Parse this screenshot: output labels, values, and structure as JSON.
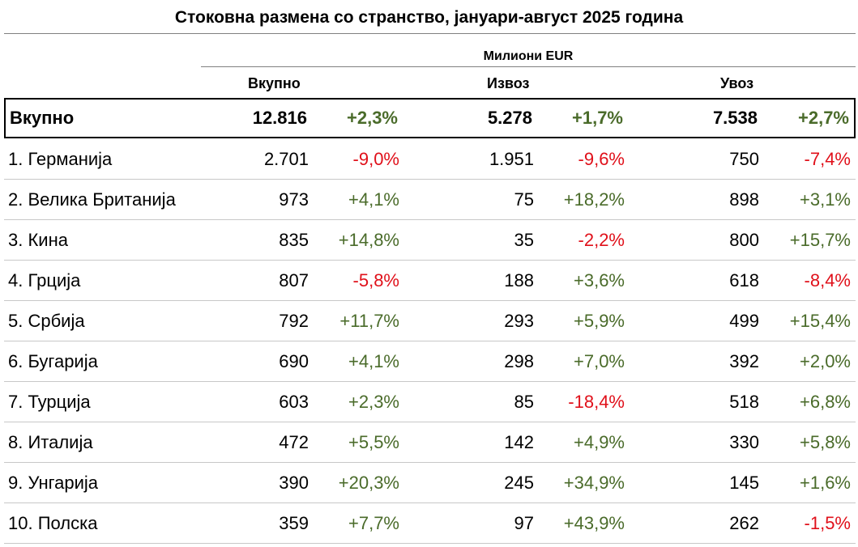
{
  "title": "Стоковна размена со странство, јануари-август 2025 година",
  "units": "Милиони EUR",
  "columns": {
    "total": "Вкупно",
    "exports": "Извоз",
    "imports": "Увоз"
  },
  "colors": {
    "positive": "#4a6b2a",
    "negative": "#e0101a"
  },
  "total_row": {
    "label": "Вкупно",
    "total": "12.816",
    "total_change": "+2,3%",
    "exports": "5.278",
    "exports_change": "+1,7%",
    "imports": "7.538",
    "imports_change": "+2,7%"
  },
  "rows": [
    {
      "label": "1. Германија",
      "total": "2.701",
      "total_change": "-9,0%",
      "exports": "1.951",
      "exports_change": "-9,6%",
      "imports": "750",
      "imports_change": "-7,4%"
    },
    {
      "label": "2. Велика Британија",
      "total": "973",
      "total_change": "+4,1%",
      "exports": "75",
      "exports_change": "+18,2%",
      "imports": "898",
      "imports_change": "+3,1%"
    },
    {
      "label": "3. Кина",
      "total": "835",
      "total_change": "+14,8%",
      "exports": "35",
      "exports_change": "-2,2%",
      "imports": "800",
      "imports_change": "+15,7%"
    },
    {
      "label": "4. Грција",
      "total": "807",
      "total_change": "-5,8%",
      "exports": "188",
      "exports_change": "+3,6%",
      "imports": "618",
      "imports_change": "-8,4%"
    },
    {
      "label": "5. Србија",
      "total": "792",
      "total_change": "+11,7%",
      "exports": "293",
      "exports_change": "+5,9%",
      "imports": "499",
      "imports_change": "+15,4%"
    },
    {
      "label": "6. Бугарија",
      "total": "690",
      "total_change": "+4,1%",
      "exports": "298",
      "exports_change": "+7,0%",
      "imports": "392",
      "imports_change": "+2,0%"
    },
    {
      "label": "7. Турција",
      "total": "603",
      "total_change": "+2,3%",
      "exports": "85",
      "exports_change": "-18,4%",
      "imports": "518",
      "imports_change": "+6,8%"
    },
    {
      "label": "8. Италија",
      "total": "472",
      "total_change": "+5,5%",
      "exports": "142",
      "exports_change": "+4,9%",
      "imports": "330",
      "imports_change": "+5,8%"
    },
    {
      "label": "9. Унгарија",
      "total": "390",
      "total_change": "+20,3%",
      "exports": "245",
      "exports_change": "+34,9%",
      "imports": "145",
      "imports_change": "+1,6%"
    },
    {
      "label": "10. Полска",
      "total": "359",
      "total_change": "+7,7%",
      "exports": "97",
      "exports_change": "+43,9%",
      "imports": "262",
      "imports_change": "-1,5%"
    }
  ]
}
